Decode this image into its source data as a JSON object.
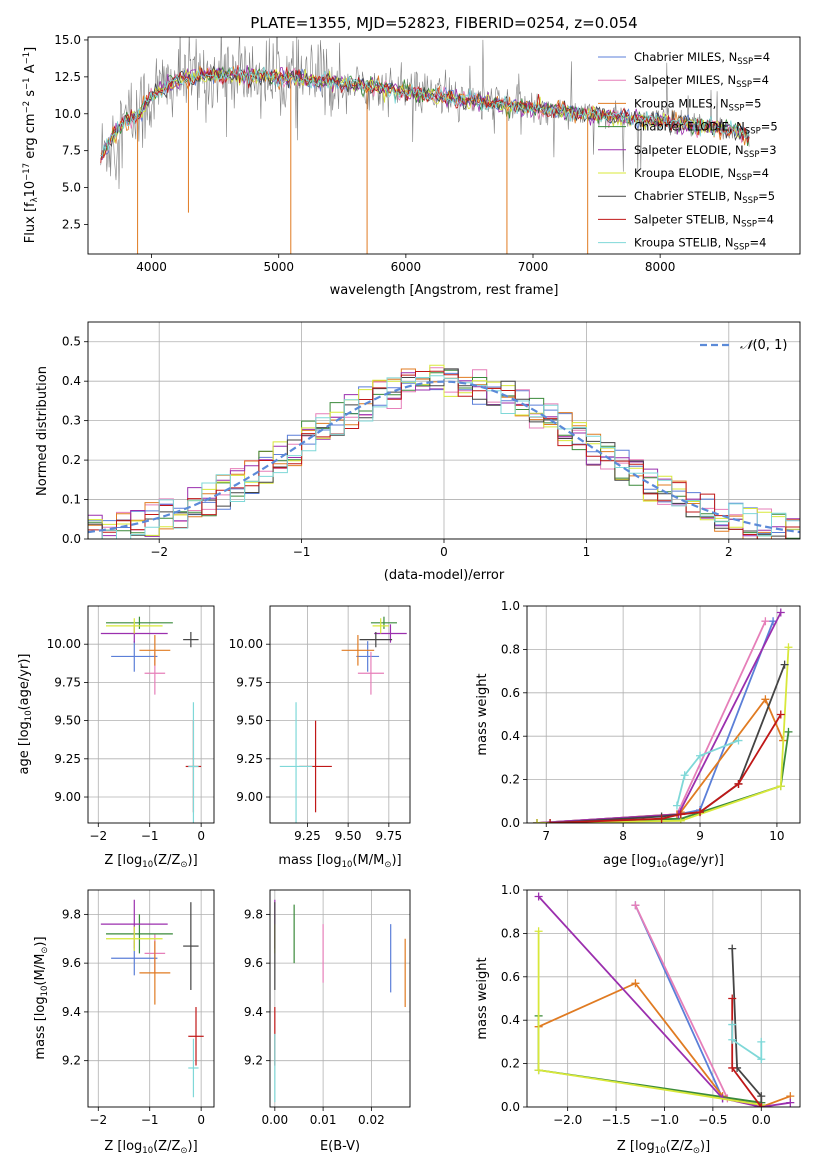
{
  "figure_title": "PLATE=1355, MJD=52823, FIBERID=0254, z=0.054",
  "colors": {
    "Chabrier MILES": "#5b7fd8",
    "Salpeter MILES": "#e67fb9",
    "Kroupa MILES": "#e07b22",
    "Chabrier ELODIE": "#3a8a3a",
    "Salpeter ELODIE": "#9b2fae",
    "Kroupa ELODIE": "#d8e83a",
    "Chabrier STELIB": "#444444",
    "Salpeter STELIB": "#c01818",
    "Kroupa STELIB": "#7fd8d8",
    "data": "#808080",
    "normal": "#5b8ad8"
  },
  "chart_data": [
    {
      "type": "line",
      "title": "PLATE=1355, MJD=52823, FIBERID=0254, z=0.054",
      "xlabel": "wavelength [Angstrom, rest frame]",
      "ylabel": "Flux [f",
      "ylabel_sub": "λ",
      "ylabel_rest": "10",
      "ylabel_exp": "−17",
      "ylabel_units": " erg cm",
      "ylabel_exp2": "−2",
      "ylabel_units2": " s",
      "ylabel_exp3": "−1",
      "ylabel_units3": " A",
      "ylabel_exp4": "−1",
      "ylabel_close": "]",
      "xlim": [
        3500,
        9100
      ],
      "ylim": [
        0.5,
        15.2
      ],
      "xticks": [
        "4000",
        "5000",
        "6000",
        "7000",
        "8000"
      ],
      "yticks": [
        "2.5",
        "5.0",
        "7.5",
        "10.0",
        "12.5",
        "15.0"
      ],
      "continuum": [
        [
          3600,
          7.0
        ],
        [
          3700,
          8.6
        ],
        [
          3800,
          9.5
        ],
        [
          3900,
          10.0
        ],
        [
          4000,
          11.2
        ],
        [
          4200,
          12.3
        ],
        [
          4400,
          12.6
        ],
        [
          4600,
          12.6
        ],
        [
          5000,
          12.5
        ],
        [
          5500,
          12.1
        ],
        [
          6000,
          11.5
        ],
        [
          6500,
          10.9
        ],
        [
          7000,
          10.4
        ],
        [
          7500,
          9.9
        ],
        [
          8000,
          9.5
        ],
        [
          8500,
          9.0
        ],
        [
          8700,
          8.5
        ]
      ],
      "spikes_down": [
        [
          3890,
          0.5
        ],
        [
          4290,
          3.3
        ],
        [
          5095,
          0.5
        ],
        [
          5695,
          0.5
        ],
        [
          6795,
          0.5
        ],
        [
          7430,
          0.5
        ]
      ],
      "legend": [
        {
          "name": "Chabrier MILES",
          "nssp": "4"
        },
        {
          "name": "Salpeter MILES",
          "nssp": "4"
        },
        {
          "name": "Kroupa MILES",
          "nssp": "5"
        },
        {
          "name": "Chabrier ELODIE",
          "nssp": "5"
        },
        {
          "name": "Salpeter ELODIE",
          "nssp": "3"
        },
        {
          "name": "Kroupa ELODIE",
          "nssp": "4"
        },
        {
          "name": "Chabrier STELIB",
          "nssp": "5"
        },
        {
          "name": "Salpeter STELIB",
          "nssp": "4"
        },
        {
          "name": "Kroupa STELIB",
          "nssp": "4"
        }
      ],
      "legend_label_sub": "SSP",
      "legend_placement": "top-right"
    },
    {
      "type": "line",
      "xlabel": "(data-model)/error",
      "ylabel": "Normed distribution",
      "xlim": [
        -2.5,
        2.5
      ],
      "ylim": [
        0,
        0.55
      ],
      "xticks": [
        "−2",
        "−1",
        "0",
        "1",
        "2"
      ],
      "yticks": [
        "0.0",
        "0.1",
        "0.2",
        "0.3",
        "0.4",
        "0.5"
      ],
      "legend": "N(0,1)",
      "legend_placement": "top-right",
      "grid": true,
      "hist_bin_width": 0.1
    },
    {
      "type": "scatter",
      "xlabel": "Z [log",
      "xlabel_sub": "10",
      "xlabel_rest": "(Z/Z",
      "xlabel_sun": "⊙",
      "xlabel_close": ")]",
      "ylabel": "age  [log",
      "ylabel_sub": "10",
      "ylabel_rest": "(age/yr)]",
      "xlim": [
        -2.2,
        0.25
      ],
      "ylim": [
        8.83,
        10.25
      ],
      "xticks": [
        "−2",
        "−1",
        "0"
      ],
      "yticks": [
        "9.00",
        "9.25",
        "9.50",
        "9.75",
        "10.00"
      ],
      "points": [
        {
          "model": "Chabrier MILES",
          "x": -1.3,
          "y": 9.92,
          "xerr": 0.45,
          "yerr": 0.1
        },
        {
          "model": "Salpeter MILES",
          "x": -0.9,
          "y": 9.81,
          "xerr": 0.2,
          "yerr": 0.14
        },
        {
          "model": "Kroupa MILES",
          "x": -0.9,
          "y": 9.96,
          "xerr": 0.3,
          "yerr": 0.1
        },
        {
          "model": "Chabrier ELODIE",
          "x": -1.2,
          "y": 10.14,
          "xerr": 0.65,
          "yerr": 0.04
        },
        {
          "model": "Salpeter ELODIE",
          "x": -1.3,
          "y": 10.07,
          "xerr": 0.65,
          "yerr": 0.06
        },
        {
          "model": "Kroupa ELODIE",
          "x": -1.3,
          "y": 10.12,
          "xerr": 0.55,
          "yerr": 0.05
        },
        {
          "model": "Chabrier STELIB",
          "x": -0.2,
          "y": 10.03,
          "xerr": 0.15,
          "yerr": 0.05
        },
        {
          "model": "Salpeter STELIB",
          "x": -0.15,
          "y": 9.2,
          "xerr": 0.15,
          "yerr": 0.3
        },
        {
          "model": "Kroupa STELIB",
          "x": -0.15,
          "y": 9.2,
          "xerr": 0.1,
          "yerr": 0.42
        }
      ]
    },
    {
      "type": "scatter",
      "xlabel": "mass [log",
      "xlabel_sub": "10",
      "xlabel_rest": "(M/M",
      "xlabel_sun": "⊙",
      "xlabel_close": ")]",
      "xlim": [
        9.02,
        9.88
      ],
      "ylim": [
        8.83,
        10.25
      ],
      "xticks": [
        "9.25",
        "9.50",
        "9.75"
      ],
      "yticks": [
        "9.00",
        "9.25",
        "9.50",
        "9.75",
        "10.00"
      ],
      "points": [
        {
          "model": "Chabrier MILES",
          "x": 9.62,
          "y": 9.92,
          "xerr": 0.07,
          "yerr": 0.1
        },
        {
          "model": "Salpeter MILES",
          "x": 9.64,
          "y": 9.81,
          "xerr": 0.08,
          "yerr": 0.14
        },
        {
          "model": "Kroupa MILES",
          "x": 9.56,
          "y": 9.96,
          "xerr": 0.1,
          "yerr": 0.1
        },
        {
          "model": "Chabrier ELODIE",
          "x": 9.72,
          "y": 10.14,
          "xerr": 0.08,
          "yerr": 0.04
        },
        {
          "model": "Salpeter ELODIE",
          "x": 9.76,
          "y": 10.07,
          "xerr": 0.1,
          "yerr": 0.06
        },
        {
          "model": "Kroupa ELODIE",
          "x": 9.7,
          "y": 10.12,
          "xerr": 0.05,
          "yerr": 0.05
        },
        {
          "model": "Chabrier STELIB",
          "x": 9.67,
          "y": 10.03,
          "xerr": 0.1,
          "yerr": 0.05
        },
        {
          "model": "Salpeter STELIB",
          "x": 9.3,
          "y": 9.2,
          "xerr": 0.1,
          "yerr": 0.3
        },
        {
          "model": "Kroupa STELIB",
          "x": 9.18,
          "y": 9.2,
          "xerr": 0.1,
          "yerr": 0.42
        }
      ]
    },
    {
      "type": "line",
      "xlabel": "age  [log",
      "xlabel_sub": "10",
      "xlabel_rest": "(age/yr)]",
      "ylabel": "mass weight",
      "xlim": [
        6.75,
        10.3
      ],
      "ylim": [
        0,
        1.0
      ],
      "xticks": [
        "7",
        "8",
        "9",
        "10"
      ],
      "yticks": [
        "0.0",
        "0.2",
        "0.4",
        "0.6",
        "0.8",
        "1.0"
      ],
      "grid": true,
      "series": [
        {
          "model": "Chabrier MILES",
          "x": [
            6.88,
            8.72,
            9.0,
            9.95
          ],
          "y": [
            0.0,
            0.04,
            0.06,
            0.93
          ]
        },
        {
          "model": "Salpeter MILES",
          "x": [
            6.88,
            8.7,
            9.85
          ],
          "y": [
            0.0,
            0.04,
            0.93
          ]
        },
        {
          "model": "Kroupa MILES",
          "x": [
            6.88,
            8.7,
            8.75,
            9.85,
            10.08
          ],
          "y": [
            0.0,
            0.04,
            0.05,
            0.57,
            0.38
          ]
        },
        {
          "model": "Chabrier ELODIE",
          "x": [
            6.88,
            8.75,
            10.05,
            10.15
          ],
          "y": [
            0.0,
            0.02,
            0.17,
            0.42
          ]
        },
        {
          "model": "Salpeter ELODIE",
          "x": [
            6.88,
            8.72,
            10.05
          ],
          "y": [
            0.0,
            0.04,
            0.97
          ]
        },
        {
          "model": "Kroupa ELODIE",
          "x": [
            6.88,
            8.75,
            10.05,
            10.15
          ],
          "y": [
            0.0,
            0.01,
            0.17,
            0.81
          ]
        },
        {
          "model": "Chabrier STELIB",
          "x": [
            7.05,
            8.5,
            9.0,
            9.5,
            10.1
          ],
          "y": [
            0.0,
            0.03,
            0.05,
            0.18,
            0.73
          ]
        },
        {
          "model": "Salpeter STELIB",
          "x": [
            7.05,
            8.5,
            8.75,
            9.0,
            9.5,
            10.05
          ],
          "y": [
            0.0,
            0.02,
            0.04,
            0.05,
            0.18,
            0.5
          ]
        },
        {
          "model": "Kroupa STELIB",
          "x": [
            8.7,
            8.8,
            9.0,
            9.5
          ],
          "y": [
            0.08,
            0.22,
            0.31,
            0.38
          ]
        }
      ]
    },
    {
      "type": "scatter",
      "xlabel": "Z [log",
      "xlabel_sub": "10",
      "xlabel_rest": "(Z/Z",
      "xlabel_sun": "⊙",
      "xlabel_close": ")]",
      "ylabel": "mass [log",
      "ylabel_sub": "10",
      "ylabel_rest": "(M/M",
      "ylabel_sun": "⊙",
      "ylabel_close": ")]",
      "xlim": [
        -2.2,
        0.25
      ],
      "ylim": [
        9.01,
        9.9
      ],
      "xticks": [
        "−2",
        "−1",
        "0"
      ],
      "yticks": [
        "9.2",
        "9.4",
        "9.6",
        "9.8"
      ],
      "points": [
        {
          "model": "Chabrier MILES",
          "x": -1.3,
          "y": 9.62,
          "xerr": 0.45,
          "yerr": 0.07
        },
        {
          "model": "Salpeter MILES",
          "x": -0.9,
          "y": 9.64,
          "xerr": 0.2,
          "yerr": 0.08
        },
        {
          "model": "Kroupa MILES",
          "x": -0.9,
          "y": 9.56,
          "xerr": 0.3,
          "yerr": 0.13
        },
        {
          "model": "Chabrier ELODIE",
          "x": -1.2,
          "y": 9.72,
          "xerr": 0.65,
          "yerr": 0.08
        },
        {
          "model": "Salpeter ELODIE",
          "x": -1.3,
          "y": 9.76,
          "xerr": 0.65,
          "yerr": 0.1
        },
        {
          "model": "Kroupa ELODIE",
          "x": -1.3,
          "y": 9.7,
          "xerr": 0.55,
          "yerr": 0.05
        },
        {
          "model": "Chabrier STELIB",
          "x": -0.2,
          "y": 9.67,
          "xerr": 0.15,
          "yerr": 0.18
        },
        {
          "model": "Salpeter STELIB",
          "x": -0.1,
          "y": 9.3,
          "xerr": 0.15,
          "yerr": 0.12
        },
        {
          "model": "Kroupa STELIB",
          "x": -0.15,
          "y": 9.17,
          "xerr": 0.1,
          "yerr": 0.12
        }
      ]
    },
    {
      "type": "scatter",
      "xlabel": "E(B-V)",
      "xlim": [
        -0.001,
        0.028
      ],
      "ylim": [
        9.01,
        9.9
      ],
      "xticks": [
        "0.00",
        "0.01",
        "0.02"
      ],
      "yticks": [
        "9.2",
        "9.4",
        "9.6",
        "9.8"
      ],
      "points": [
        {
          "model": "Chabrier MILES",
          "x": 0.024,
          "y": 9.62,
          "xerr": 0.0,
          "yerr": 0.14
        },
        {
          "model": "Salpeter MILES",
          "x": 0.01,
          "y": 9.64,
          "xerr": 0.0,
          "yerr": 0.12
        },
        {
          "model": "Kroupa MILES",
          "x": 0.027,
          "y": 9.56,
          "xerr": 0.0,
          "yerr": 0.14
        },
        {
          "model": "Chabrier ELODIE",
          "x": 0.004,
          "y": 9.72,
          "xerr": 0.0,
          "yerr": 0.12
        },
        {
          "model": "Salpeter ELODIE",
          "x": 0.0,
          "y": 9.76,
          "xerr": 0.0,
          "yerr": 0.1
        },
        {
          "model": "Kroupa ELODIE",
          "x": 0.0,
          "y": 9.7,
          "xerr": 0.0,
          "yerr": 0.06
        },
        {
          "model": "Chabrier STELIB",
          "x": 0.0,
          "y": 9.67,
          "xerr": 0.0,
          "yerr": 0.18
        },
        {
          "model": "Salpeter STELIB",
          "x": 0.0,
          "y": 9.3,
          "xerr": 0.0,
          "yerr": 0.12
        },
        {
          "model": "Kroupa STELIB",
          "x": 0.0,
          "y": 9.17,
          "xerr": 0.0,
          "yerr": 0.14
        }
      ]
    },
    {
      "type": "line",
      "xlabel": "Z [log",
      "xlabel_sub": "10",
      "xlabel_rest": "(Z/Z",
      "xlabel_sun": "⊙",
      "xlabel_close": ")]",
      "ylabel": "mass weight",
      "xlim": [
        -2.42,
        0.4
      ],
      "ylim": [
        0,
        1.0
      ],
      "xticks": [
        "−2.0",
        "−1.5",
        "−1.0",
        "−0.5",
        "0.0"
      ],
      "yticks": [
        "0.0",
        "0.2",
        "0.4",
        "0.6",
        "0.8",
        "1.0"
      ],
      "grid": true,
      "series": [
        {
          "model": "Chabrier MILES",
          "x": [
            -1.3,
            -0.4,
            0.0
          ],
          "y": [
            0.93,
            0.04,
            0.02
          ]
        },
        {
          "model": "Salpeter MILES",
          "x": [
            -1.3,
            -0.35,
            0.0
          ],
          "y": [
            0.93,
            0.04,
            0.02
          ]
        },
        {
          "model": "Kroupa MILES",
          "x": [
            -2.3,
            -1.3,
            -0.4,
            0.0,
            0.3
          ],
          "y": [
            0.37,
            0.57,
            0.05,
            0.0,
            0.05
          ]
        },
        {
          "model": "Chabrier ELODIE",
          "x": [
            -2.3,
            -2.3,
            -0.0,
            0.0
          ],
          "y": [
            0.42,
            0.17,
            0.02,
            0.0
          ]
        },
        {
          "model": "Salpeter ELODIE",
          "x": [
            -2.3,
            -0.4,
            0.0,
            0.3
          ],
          "y": [
            0.97,
            0.04,
            0.0,
            0.02
          ]
        },
        {
          "model": "Kroupa ELODIE",
          "x": [
            -2.3,
            -2.3,
            0.0
          ],
          "y": [
            0.81,
            0.17,
            0.01
          ]
        },
        {
          "model": "Chabrier STELIB",
          "x": [
            -0.3,
            -0.25,
            -0.0,
            0.0
          ],
          "y": [
            0.73,
            0.18,
            0.05,
            0.0
          ]
        },
        {
          "model": "Salpeter STELIB",
          "x": [
            -0.3,
            -0.3,
            0.0
          ],
          "y": [
            0.5,
            0.18,
            0.0
          ]
        },
        {
          "model": "Kroupa STELIB",
          "x": [
            -0.3,
            -0.3,
            0.0,
            0.0
          ],
          "y": [
            0.38,
            0.31,
            0.22,
            0.3
          ]
        }
      ]
    }
  ]
}
